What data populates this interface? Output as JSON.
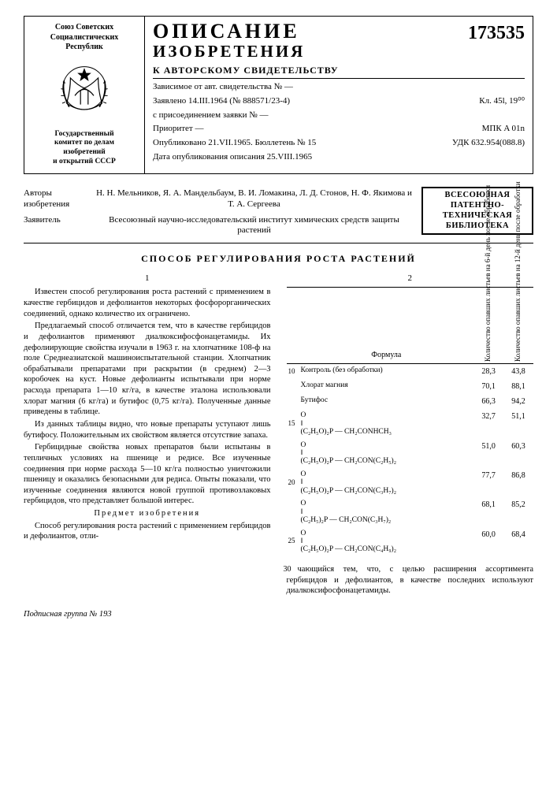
{
  "header": {
    "org_lines": [
      "Союз Советских",
      "Социалистических",
      "Республик"
    ],
    "committee_lines": [
      "Государственный",
      "комитет по делам",
      "изобретений",
      "и открытий СССР"
    ],
    "title1": "ОПИСАНИЕ",
    "title2": "ИЗОБРЕТЕНИЯ",
    "subtitle": "К АВТОРСКОМУ СВИДЕТЕЛЬСТВУ",
    "patent_no": "173535",
    "meta": [
      {
        "l": "Зависимое от авт. свидетельства №   —",
        "r": ""
      },
      {
        "l": "Заявлено 14.III.1964 (№ 888571/23-4)",
        "r": "Кл. 45l, 19⁰⁰"
      },
      {
        "l": "с присоединением заявки №   —",
        "r": ""
      },
      {
        "l": "Приоритет   —",
        "r": "МПК A 01n"
      },
      {
        "l": "Опубликовано 21.VII.1965. Бюллетень № 15",
        "r": "УДК 632.954(088.8)"
      },
      {
        "l": "Дата опубликования описания 25.VIII.1965",
        "r": ""
      }
    ]
  },
  "authors": {
    "label_authors": "Авторы\nизобретения",
    "authors_line": "Н. Н. Мельников, Я. А. Мандельбаум, В. И. Ломакина, Л. Д. Стонов, Н. Ф. Якимова и Т. А. Сергеева",
    "label_applicant": "Заявитель",
    "applicant": "Всесоюзный научно-исследовательский институт химических средств защиты растений"
  },
  "stamp": {
    "l1": "ВСЕСОЮЗНАЯ",
    "l2": "ПАТЕНТНО-",
    "l3": "ТЕХНИЧЕСКАЯ",
    "l4": "БИБЛИОТЕКА"
  },
  "doc_title": "СПОСОБ РЕГУЛИРОВАНИЯ РОСТА РАСТЕНИЙ",
  "col1": {
    "marker": "1",
    "p1": "Известен способ регулирования роста растений с применением в качестве гербицидов и дефолиантов некоторых фосфорорганических соединений, однако количество их ограничено.",
    "p2": "Предлагаемый способ отличается тем, что в качестве гербицидов и дефолиантов применяют диалкоксифосфонацетамиды. Их дефолиирующие свойства изучали в 1963 г. на хлопчатнике 108-ф на поле Среднеазиатской машиноиспытательной станции. Хлопчатник обрабатывали препаратами при раскрытии (в среднем) 2—3 коробочек на куст. Новые дефолианты испытывали при норме расхода препарата 1—10 кг/га, в качестве эталона использовали хлорат магния (6 кг/га) и бутифос (0,75 кг/га). Полученные данные приведены в таблице.",
    "p3": "Из данных таблицы видно, что новые препараты уступают лишь бутифосу. Положительным их свойством является отсутствие запаха.",
    "p4": "Гербицидные свойства новых препаратов были испытаны в тепличных условиях на пшенице и редисе. Все изученные соединения при норме расхода 5—10 кг/га полностью уничтожили пшеницу и оказались безопасными для редиса. Опыты показали, что изученные соединения являются новой группой противозлаковых гербицидов, что представляет большой интерес.",
    "heading": "Предмет изобретения",
    "p5": "Способ регулирования роста растений с применением гербицидов и дефолиантов, отли-"
  },
  "col2": {
    "marker": "2",
    "table": {
      "head_formula": "Формула",
      "head_c1": "Количество опавших листьев на 6-й день после обработки",
      "head_c2": "Количество опавших листьев на 12-й день после обработки",
      "rows": [
        {
          "ln": "10",
          "f": "Контроль (без обработки)",
          "a": "28,3",
          "b": "43,8"
        },
        {
          "ln": "",
          "f": "Хлорат магния",
          "a": "70,1",
          "b": "88,1"
        },
        {
          "ln": "",
          "f": "Бутифос",
          "a": "66,3",
          "b": "94,2"
        },
        {
          "ln": "15",
          "f": "O\n‖\n(C₂H₅O)₂P — CH₂CONHCH₃",
          "a": "32,7",
          "b": "51,1"
        },
        {
          "ln": "",
          "f": "O\n‖\n(C₂H₅O)₂P — CH₂CON(C₂H₅)₂",
          "a": "51,0",
          "b": "60,3"
        },
        {
          "ln": "20",
          "f": "O\n‖\n(C₂H₅O)₂P — CH₂CON(C₃H₇)₂",
          "a": "77,7",
          "b": "86,8"
        },
        {
          "ln": "",
          "f": "O\n‖\n(C₂H₅)₂P — CH₂CON(C₃H₇)₂",
          "a": "68,1",
          "b": "85,2"
        },
        {
          "ln": "25",
          "f": "O\n‖\n(C₂H₅O)₂P — CH₂CON(C₄H₉)₂",
          "a": "60,0",
          "b": "68,4"
        }
      ]
    },
    "p_tail": "чающийся тем, что, с целью расширения ассортимента гербицидов и дефолиантов, в качестве последних используют диалкоксифосфон­ацетамиды.",
    "ln30": "30"
  },
  "line_numbers_left": [
    "5"
  ],
  "footer": "Подписная группа № 193"
}
